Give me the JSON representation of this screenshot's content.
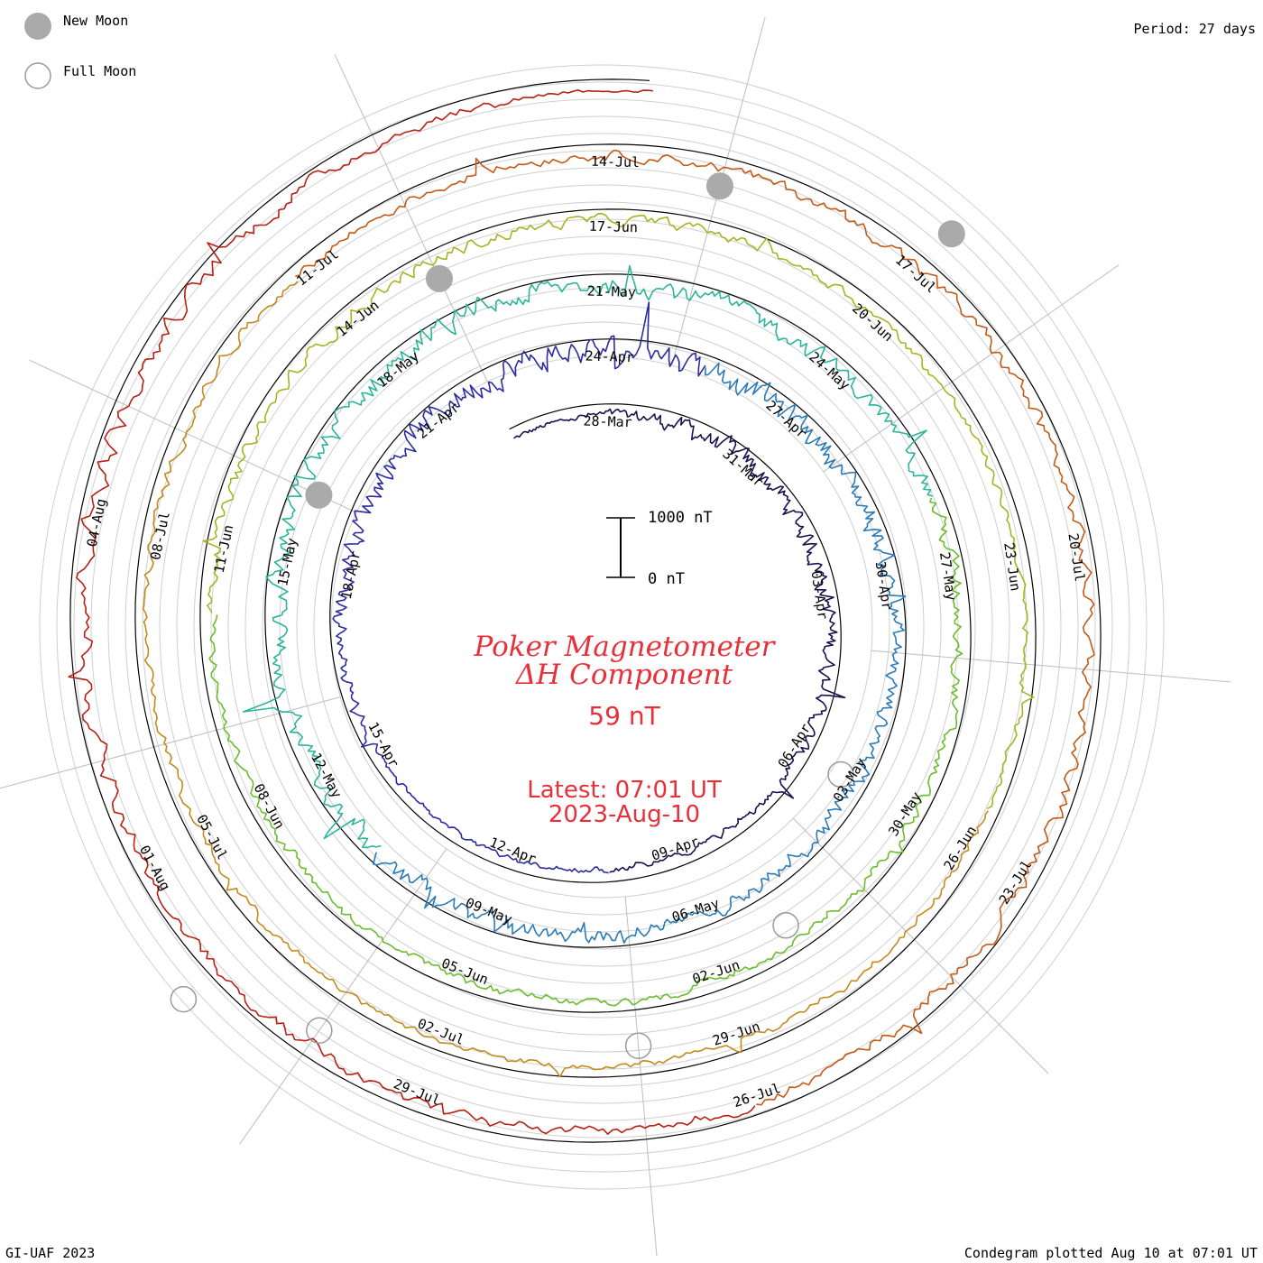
{
  "legend": {
    "new_moon_label": "New Moon",
    "full_moon_label": "Full Moon"
  },
  "period_label": "Period: 27 days",
  "footer": {
    "left": "GI-UAF 2023",
    "right": "Condegram plotted Aug 10 at 07:01 UT"
  },
  "scale_bar": {
    "top_label": "1000 nT",
    "bottom_label": "0 nT"
  },
  "center": {
    "title_line1": "Poker Magnetometer",
    "title_line2": "ΔH Component",
    "current_value": "59 nT",
    "latest_line1": "Latest: 07:01 UT",
    "latest_line2": "2023-Aug-10"
  },
  "chart_data": {
    "type": "condegram (spiral time series)",
    "period_days": 27,
    "start_date": "2023-03-26",
    "end_date": "2023-08-10",
    "unit": "nT",
    "scale_nT": [
      0,
      1000
    ],
    "latest_value_nT": 59,
    "date_labels": [
      "28-Mar",
      "31-Mar",
      "03-Apr",
      "06-Apr",
      "09-Apr",
      "12-Apr",
      "15-Apr",
      "18-Apr",
      "21-Apr",
      "24-Apr",
      "27-Apr",
      "30-Apr",
      "03-May",
      "06-May",
      "09-May",
      "12-May",
      "15-May",
      "18-May",
      "21-May",
      "24-May",
      "27-May",
      "30-May",
      "02-Jun",
      "05-Jun",
      "08-Jun",
      "11-Jun",
      "14-Jun",
      "17-Jun",
      "20-Jun",
      "23-Jun",
      "26-Jun",
      "29-Jun",
      "02-Jul",
      "05-Jul",
      "08-Jul",
      "11-Jul",
      "14-Jul",
      "17-Jul",
      "20-Jul",
      "23-Jul",
      "26-Jul",
      "29-Jul",
      "01-Aug",
      "04-Aug"
    ],
    "date_label_days": [
      2,
      5,
      8,
      11,
      14,
      17,
      20,
      23,
      26,
      29,
      32,
      35,
      38,
      41,
      44,
      47,
      50,
      53,
      56,
      59,
      62,
      65,
      68,
      71,
      74,
      77,
      80,
      83,
      86,
      89,
      92,
      95,
      98,
      101,
      104,
      107,
      110,
      113,
      116,
      119,
      122,
      125,
      128,
      131
    ],
    "new_moon_days": [
      24,
      54,
      84,
      113
    ],
    "full_moon_days": [
      11,
      40,
      69,
      99,
      127
    ],
    "activity_nT": [
      [
        "2023-03-27",
        80
      ],
      [
        "2023-03-30",
        300
      ],
      [
        "2023-04-04",
        250
      ],
      [
        "2023-04-07",
        120
      ],
      [
        "2023-04-14",
        60
      ],
      [
        "2023-04-18",
        250
      ],
      [
        "2023-04-23",
        450
      ],
      [
        "2023-05-01",
        250
      ],
      [
        "2023-05-06",
        200
      ],
      [
        "2023-05-10",
        300
      ],
      [
        "2023-05-19",
        350
      ],
      [
        "2023-05-25",
        250
      ],
      [
        "2023-06-01",
        120
      ],
      [
        "2023-06-10",
        150
      ],
      [
        "2023-06-15",
        200
      ],
      [
        "2023-06-22",
        100
      ],
      [
        "2023-07-01",
        100
      ],
      [
        "2023-07-13",
        150
      ],
      [
        "2023-07-18",
        200
      ],
      [
        "2023-07-29",
        150
      ],
      [
        "2023-08-05",
        300
      ],
      [
        "2023-08-10",
        59
      ]
    ],
    "series_colors": [
      "#1c1050",
      "#2d2c9e",
      "#2b7bb8",
      "#2cb59a",
      "#6bbd2e",
      "#a8b324",
      "#c48a1c",
      "#c25a18",
      "#b82014"
    ]
  }
}
